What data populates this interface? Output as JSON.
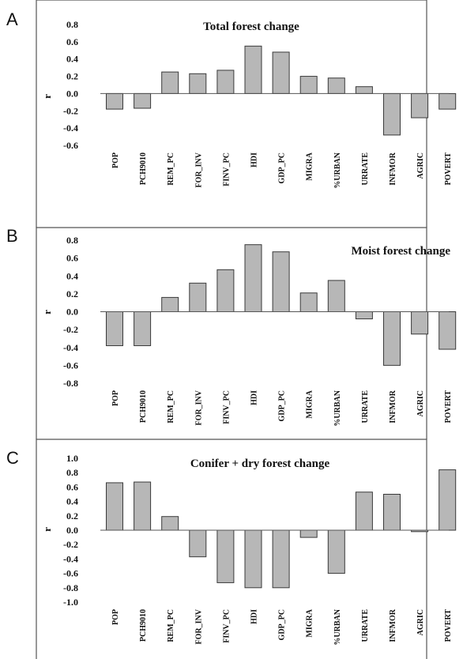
{
  "chart_data": [
    {
      "panel": "A",
      "type": "bar",
      "title": "Total forest change",
      "ylabel": "r",
      "ylim": [
        -0.6,
        0.8
      ],
      "yticks": [
        "0.8",
        "0.6",
        "0.4",
        "0.2",
        "0.0",
        "-0.2",
        "-0.4",
        "-0.6"
      ],
      "categories": [
        "POP",
        "PCH9010",
        "REM_PC",
        "FOR_INV",
        "FINV_PC",
        "HDI",
        "GDP_PC",
        "MIGRA",
        "%URBAN",
        "URRATE",
        "INFMOR",
        "AGRIC",
        "POVERT"
      ],
      "values": [
        -0.18,
        -0.17,
        0.25,
        0.23,
        0.27,
        0.55,
        0.48,
        0.2,
        0.18,
        0.08,
        -0.48,
        -0.28,
        -0.18
      ]
    },
    {
      "panel": "B",
      "type": "bar",
      "title": "Moist forest change",
      "ylabel": "r",
      "ylim": [
        -0.8,
        0.8
      ],
      "yticks": [
        "0.8",
        "0.6",
        "0.4",
        "0.2",
        "0.0",
        "-0.2",
        "-0.4",
        "-0.6",
        "-0.8"
      ],
      "categories": [
        "POP",
        "PCH9010",
        "REM_PC",
        "FOR_INV",
        "FINV_PC",
        "HDI",
        "GDP_PC",
        "MIGRA",
        "%URBAN",
        "URRATE",
        "INFMOR",
        "AGRIC",
        "POVERT"
      ],
      "values": [
        -0.38,
        -0.38,
        0.16,
        0.32,
        0.47,
        0.75,
        0.67,
        0.21,
        0.35,
        -0.08,
        -0.6,
        -0.25,
        -0.42
      ]
    },
    {
      "panel": "C",
      "type": "bar",
      "title": "Conifer + dry forest change",
      "ylabel": "r",
      "ylim": [
        -1.0,
        1.0
      ],
      "yticks": [
        "1.0",
        "0.8",
        "0.6",
        "0.4",
        "0.2",
        "0.0",
        "-0.2",
        "-0.4",
        "-0.6",
        "-0.8",
        "-1.0"
      ],
      "categories": [
        "POP",
        "PCH9010",
        "REM_PC",
        "FOR_INV",
        "FINV_PC",
        "HDI",
        "GDP_PC",
        "MIGRA",
        "%URBAN",
        "URRATE",
        "INFMOR",
        "AGRIC",
        "POVERT"
      ],
      "values": [
        0.66,
        0.67,
        0.19,
        -0.37,
        -0.73,
        -0.8,
        -0.8,
        -0.1,
        -0.6,
        0.53,
        0.5,
        -0.02,
        0.84
      ]
    }
  ]
}
